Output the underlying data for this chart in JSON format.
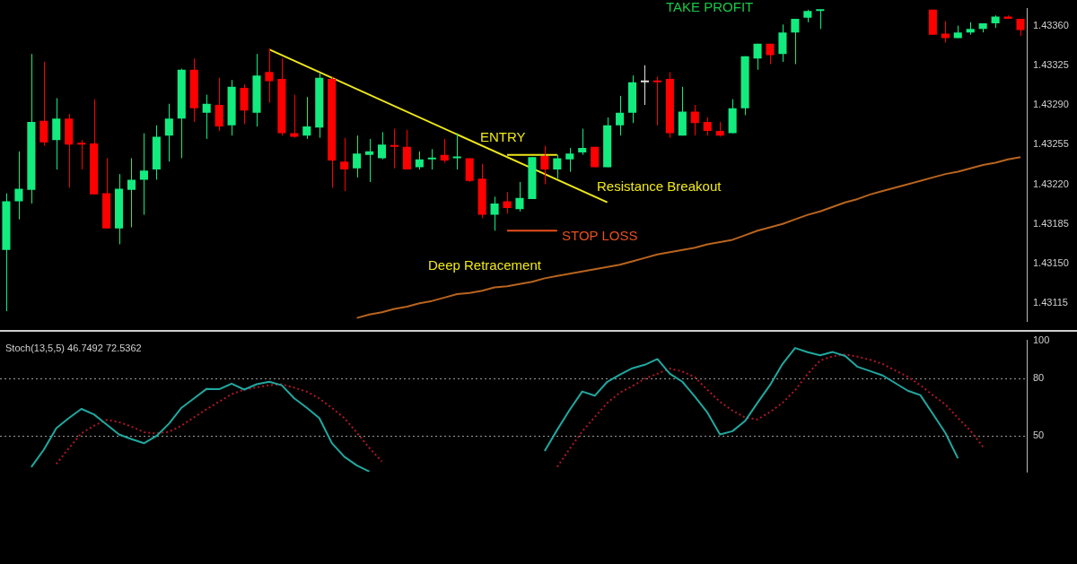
{
  "chart_data": [
    {
      "type": "candlestick",
      "categories": [
        null,
        null,
        null,
        null,
        null,
        null,
        null,
        null,
        null,
        null,
        null,
        null,
        null,
        null,
        null,
        null,
        null,
        null,
        null,
        null,
        null,
        null,
        null,
        null,
        null,
        null,
        null,
        null,
        null,
        null,
        null,
        null,
        null,
        null,
        null,
        null,
        null,
        null,
        null,
        null,
        null,
        null,
        null,
        null,
        null,
        null,
        null,
        null,
        null,
        null,
        null,
        null,
        null,
        null,
        null,
        null,
        null,
        null,
        null,
        null,
        null,
        null,
        null,
        null,
        null,
        null,
        null,
        null,
        null,
        null,
        null,
        null,
        null,
        null,
        null,
        null,
        null,
        null,
        null,
        null,
        null,
        null
      ],
      "ohlc": [
        [
          1.43162,
          1.43212,
          1.43108,
          1.43205
        ],
        [
          1.43205,
          1.43249,
          1.43189,
          1.43216
        ],
        [
          1.43215,
          1.43335,
          1.43203,
          1.43275
        ],
        [
          1.43276,
          1.43328,
          1.43254,
          1.43257
        ],
        [
          1.43259,
          1.43296,
          1.43233,
          1.43278
        ],
        [
          1.43278,
          1.43282,
          1.43217,
          1.43255
        ],
        [
          1.43256,
          1.43259,
          1.43233,
          1.43255
        ],
        [
          1.43256,
          1.43295,
          1.43211,
          1.43211
        ],
        [
          1.43212,
          1.43243,
          1.43181,
          1.43181
        ],
        [
          1.43181,
          1.43229,
          1.43167,
          1.43216
        ],
        [
          1.43215,
          1.43243,
          1.43182,
          1.43224
        ],
        [
          1.43224,
          1.43265,
          1.43193,
          1.43232
        ],
        [
          1.43233,
          1.43272,
          1.43224,
          1.43262
        ],
        [
          1.43263,
          1.43291,
          1.4324,
          1.43278
        ],
        [
          1.43278,
          1.43322,
          1.43243,
          1.43321
        ],
        [
          1.43321,
          1.43331,
          1.43275,
          1.43287
        ],
        [
          1.43283,
          1.43299,
          1.4326,
          1.43291
        ],
        [
          1.4329,
          1.43314,
          1.43267,
          1.43271
        ],
        [
          1.43272,
          1.43312,
          1.43263,
          1.43306
        ],
        [
          1.43305,
          1.43308,
          1.43273,
          1.43285
        ],
        [
          1.43283,
          1.43335,
          1.43271,
          1.43316
        ],
        [
          1.43319,
          1.4334,
          1.43292,
          1.43311
        ],
        [
          1.43313,
          1.43331,
          1.43263,
          1.43265
        ],
        [
          1.43265,
          1.43299,
          1.43261,
          1.43262
        ],
        [
          1.43263,
          1.43297,
          1.4326,
          1.43271
        ],
        [
          1.4327,
          1.43318,
          1.43261,
          1.43314
        ],
        [
          1.43313,
          1.43315,
          1.43217,
          1.43241
        ],
        [
          1.4324,
          1.43261,
          1.43214,
          1.43233
        ],
        [
          1.43234,
          1.43263,
          1.43226,
          1.43247
        ],
        [
          1.43246,
          1.4326,
          1.43222,
          1.43249
        ],
        [
          1.43243,
          1.43266,
          1.43242,
          1.43255
        ],
        [
          1.43254,
          1.43269,
          1.43234,
          1.43253
        ],
        [
          1.43253,
          1.43268,
          1.43233,
          1.43233
        ],
        [
          1.43235,
          1.43249,
          1.43233,
          1.43242
        ],
        [
          1.43242,
          1.43251,
          1.43233,
          1.43243
        ],
        [
          1.43246,
          1.4326,
          1.43239,
          1.43241
        ],
        [
          1.43243,
          1.43265,
          1.43233,
          1.43244
        ],
        [
          1.43243,
          1.43243,
          1.43222,
          1.43223
        ],
        [
          1.43225,
          1.43238,
          1.4319,
          1.43193
        ],
        [
          1.43193,
          1.43209,
          1.43179,
          1.43203
        ],
        [
          1.43205,
          1.43213,
          1.43194,
          1.43199
        ],
        [
          1.43198,
          1.43222,
          1.43196,
          1.43208
        ],
        [
          1.43207,
          1.43244,
          1.43207,
          1.43244
        ],
        [
          1.43245,
          1.43254,
          1.4322,
          1.43233
        ],
        [
          1.43233,
          1.43246,
          1.43225,
          1.43243
        ],
        [
          1.43242,
          1.43252,
          1.43231,
          1.43247
        ],
        [
          1.43248,
          1.43269,
          1.43246,
          1.43252
        ],
        [
          1.43253,
          1.43253,
          1.43235,
          1.43235
        ],
        [
          1.43235,
          1.43279,
          1.43235,
          1.43272
        ],
        [
          1.43272,
          1.43298,
          1.43263,
          1.43283
        ],
        [
          1.43283,
          1.43316,
          1.43274,
          1.4331
        ],
        [
          1.4331,
          1.43325,
          1.4329,
          1.43311
        ],
        [
          1.43311,
          1.43315,
          1.43272,
          1.4331
        ],
        [
          1.43313,
          1.43319,
          1.43261,
          1.43265
        ],
        [
          1.43263,
          1.43306,
          1.43263,
          1.43284
        ],
        [
          1.43284,
          1.4329,
          1.43263,
          1.43274
        ],
        [
          1.43275,
          1.43279,
          1.43263,
          1.43267
        ],
        [
          1.43267,
          1.43275,
          1.43262,
          1.43263
        ],
        [
          1.43265,
          1.43295,
          1.43265,
          1.43287
        ],
        [
          1.43287,
          1.43333,
          1.43281,
          1.43333
        ],
        [
          1.43331,
          1.43344,
          1.43321,
          1.43344
        ],
        [
          1.43344,
          1.43344,
          1.43326,
          1.43334
        ],
        [
          1.43335,
          1.43361,
          1.43328,
          1.43354
        ],
        [
          1.43354,
          1.43366,
          1.43326,
          1.43366
        ],
        [
          1.43367,
          1.43374,
          1.43363,
          1.43373
        ],
        [
          1.43373,
          1.43374,
          1.43357,
          1.43374
        ],
        null,
        null,
        null,
        null,
        null,
        null,
        null,
        null,
        [
          1.43374,
          1.43374,
          1.43352,
          1.43352
        ],
        [
          1.43353,
          1.43364,
          1.43345,
          1.43349
        ],
        [
          1.43349,
          1.4336,
          1.43349,
          1.43354
        ],
        [
          1.43354,
          1.43363,
          1.43352,
          1.43357
        ],
        [
          1.43357,
          1.43362,
          1.43354,
          1.43362
        ],
        [
          1.43362,
          1.43369,
          1.43358,
          1.43368
        ],
        [
          1.43368,
          1.43369,
          1.43366,
          1.43366
        ],
        [
          1.43366,
          1.43366,
          1.43351,
          1.43356
        ]
      ],
      "colors": [
        "#13eb7f",
        "#13eb7f",
        "#13eb7f",
        "#ff0000",
        "#13eb7f",
        "#ff0000",
        "#ff0000",
        "#ff0000",
        "#ff0000",
        "#13eb7f",
        "#13eb7f",
        "#13eb7f",
        "#13eb7f",
        "#13eb7f",
        "#13eb7f",
        "#ff0000",
        "#13eb7f",
        "#ff0000",
        "#13eb7f",
        "#ff0000",
        "#13eb7f",
        "#ff0000",
        "#ff0000",
        "#ff0000",
        "#13eb7f",
        "#13eb7f",
        "#ff0000",
        "#ff0000",
        "#13eb7f",
        "#13eb7f",
        "#13eb7f",
        "#ff0000",
        "#ff0000",
        "#13eb7f",
        "#13eb7f",
        "#ff0000",
        "#13eb7f",
        "#ff0000",
        "#ff0000",
        "#13eb7f",
        "#ff0000",
        "#13eb7f",
        "#13eb7f",
        "#ff0000",
        "#13eb7f",
        "#13eb7f",
        "#13eb7f",
        "#ff0000",
        "#13eb7f",
        "#13eb7f",
        "#13eb7f",
        "#e0e0e0",
        "#ff0000",
        "#ff0000",
        "#13eb7f",
        "#ff0000",
        "#ff0000",
        "#ff0000",
        "#13eb7f",
        "#13eb7f",
        "#13eb7f",
        "#ff0000",
        "#13eb7f",
        "#13eb7f",
        "#13eb7f",
        "#13eb7f",
        null,
        null,
        null,
        null,
        null,
        null,
        null,
        null,
        "#ff0000",
        "#ff0000",
        "#13eb7f",
        "#13eb7f",
        "#13eb7f",
        "#13eb7f",
        "#ff0000",
        "#ff0000"
      ],
      "series": [
        {
          "type": "line",
          "color": "#b8641e",
          "values": [
            null,
            null,
            null,
            null,
            null,
            null,
            null,
            null,
            null,
            null,
            null,
            null,
            null,
            null,
            null,
            null,
            null,
            null,
            null,
            null,
            null,
            null,
            null,
            null,
            null,
            null,
            null,
            null,
            1.43102,
            1.43105,
            1.43107,
            1.4311,
            1.43112,
            1.43115,
            1.43117,
            1.4312,
            1.43123,
            1.43124,
            1.43126,
            1.43129,
            1.4313,
            1.43132,
            1.43134,
            1.43137,
            1.43139,
            1.43141,
            1.43143,
            1.43145,
            1.43147,
            1.43149,
            1.43152,
            1.43155,
            1.43158,
            1.4316,
            1.43162,
            1.43164,
            1.43167,
            1.43169,
            1.43171,
            1.43175,
            1.43179,
            1.43182,
            1.43185,
            1.43189,
            1.43193,
            1.43196,
            1.432,
            1.43204,
            1.43207,
            1.43211,
            1.43214,
            1.43217,
            1.4322,
            1.43223,
            1.43226,
            1.43229,
            1.43231,
            1.43234,
            1.43237,
            1.43239,
            1.43242,
            1.43244
          ]
        },
        {
          "type": "line",
          "color": "#f0e818",
          "values": [
            null,
            null,
            null,
            null,
            null,
            null,
            null,
            null,
            null,
            null,
            null,
            null,
            null,
            null,
            null,
            null,
            null,
            null,
            null,
            null,
            null,
            1.43339,
            null,
            null,
            null,
            null,
            null,
            null,
            null,
            null,
            null,
            null,
            null,
            null,
            null,
            null,
            null,
            null,
            null,
            null,
            null,
            null,
            null,
            null,
            null,
            null,
            null,
            null,
            1.43204,
            null,
            null,
            null,
            null,
            null,
            null,
            null,
            null,
            null,
            null,
            null,
            null,
            null,
            null,
            null,
            null,
            null,
            null,
            null,
            null,
            null,
            null,
            null,
            null,
            null,
            null,
            null,
            null,
            null,
            null,
            null,
            null,
            null
          ]
        },
        {
          "type": "line",
          "color": "#f0e818",
          "values": [
            null,
            null,
            null,
            null,
            null,
            null,
            null,
            null,
            null,
            null,
            null,
            null,
            null,
            null,
            null,
            null,
            null,
            null,
            null,
            null,
            null,
            null,
            null,
            null,
            null,
            null,
            null,
            null,
            null,
            null,
            null,
            null,
            null,
            null,
            null,
            null,
            null,
            null,
            null,
            null,
            1.43246,
            1.43246,
            1.43246,
            1.43246,
            1.43246,
            null,
            null,
            null,
            null,
            null,
            null,
            null,
            null,
            null,
            null,
            null,
            null,
            null,
            null,
            null,
            null,
            null,
            null,
            null,
            null,
            null,
            null,
            null,
            null,
            null,
            null,
            null,
            null,
            null,
            null,
            null,
            null,
            null,
            null,
            null,
            null,
            null
          ]
        },
        {
          "type": "line",
          "color": "#e8501c",
          "values": [
            null,
            null,
            null,
            null,
            null,
            null,
            null,
            null,
            null,
            null,
            null,
            null,
            null,
            null,
            null,
            null,
            null,
            null,
            null,
            null,
            null,
            null,
            null,
            null,
            null,
            null,
            null,
            null,
            null,
            null,
            null,
            null,
            null,
            null,
            null,
            null,
            null,
            null,
            null,
            null,
            1.43179,
            1.43179,
            1.43179,
            1.43179,
            1.43179,
            null,
            null,
            null,
            null,
            null,
            null,
            null,
            null,
            null,
            null,
            null,
            null,
            null,
            null,
            null,
            null,
            null,
            null,
            null,
            null,
            null,
            null,
            null,
            null,
            null,
            null,
            null,
            null,
            null,
            null,
            null,
            null,
            null,
            null,
            null,
            null,
            null
          ]
        }
      ],
      "ylim": [
        1.43099,
        1.43375
      ],
      "yticks": [
        1.43115,
        {
          "value": 1.4315,
          "label": "1.43150"
        },
        1.43185,
        {
          "value": 1.4322,
          "label": "1.43220"
        },
        1.43255,
        {
          "value": 1.4329,
          "label": "1.43290"
        },
        1.43325,
        {
          "value": 1.4336,
          "label": "1.43360"
        }
      ],
      "annotations": [
        "TAKE PROFIT",
        "ENTRY",
        "Resistance Breakout",
        "STOP LOSS",
        "Deep Retracement"
      ],
      "tick_labels": "y",
      "grid": false,
      "legend": false,
      "marker": "none"
    },
    {
      "type": "line",
      "title": "Stoch(13,5,5) 46.7492 72.5362",
      "categories": [
        null,
        null,
        null,
        null,
        null,
        null,
        null,
        null,
        null,
        null,
        null,
        null,
        null,
        null,
        null,
        null,
        null,
        null,
        null,
        null,
        null,
        null,
        null,
        null,
        null,
        null,
        null,
        null,
        null,
        null,
        null,
        null,
        null,
        null,
        null,
        null,
        null,
        null,
        null,
        null,
        null,
        null,
        null,
        null,
        null,
        null,
        null,
        null,
        null,
        null,
        null,
        null,
        null,
        null,
        null,
        null,
        null,
        null,
        null,
        null,
        null,
        null,
        null,
        null,
        null,
        null,
        null,
        null,
        null,
        null,
        null,
        null,
        null,
        null,
        null,
        null,
        null,
        null,
        null,
        null,
        null,
        null
      ],
      "series": [
        {
          "color": "#20a8a0",
          "line_style": "solid",
          "values": [
            null,
            null,
            33.6,
            42.7,
            54.0,
            59.3,
            64.1,
            61.2,
            56.0,
            50.7,
            48.2,
            46.1,
            49.9,
            56.4,
            64.7,
            69.6,
            74.6,
            74.4,
            77.3,
            74.2,
            77.0,
            78.3,
            76.5,
            69.6,
            64.7,
            59.3,
            46.2,
            39.0,
            34.4,
            31.2,
            null,
            null,
            null,
            null,
            null,
            null,
            null,
            null,
            null,
            null,
            null,
            null,
            null,
            42.0,
            53.1,
            63.6,
            73.2,
            71.0,
            78.3,
            82.0,
            85.4,
            87.2,
            90.2,
            82.5,
            78.3,
            70.5,
            62.1,
            50.7,
            52.4,
            57.7,
            67.3,
            76.6,
            87.7,
            96.0,
            93.8,
            92.2,
            93.9,
            91.8,
            86.1,
            83.9,
            81.6,
            77.6,
            73.6,
            71.3,
            61.5,
            51.5,
            38.2,
            null,
            null,
            null,
            null,
            null
          ]
        },
        {
          "color": "#b01828",
          "line_style": "dotted",
          "values": [
            null,
            null,
            null,
            null,
            35.2,
            43.5,
            51.3,
            55.2,
            58.3,
            57.2,
            54.8,
            51.9,
            51.2,
            52.1,
            55.3,
            59.7,
            63.9,
            67.9,
            71.8,
            74.2,
            75.4,
            76.5,
            77.0,
            75.2,
            73.1,
            69.6,
            64.6,
            59.3,
            51.6,
            43.6,
            36.5,
            null,
            null,
            null,
            null,
            null,
            null,
            null,
            null,
            null,
            null,
            null,
            null,
            null,
            33.7,
            43.2,
            52.3,
            59.8,
            67.2,
            72.6,
            76.0,
            79.9,
            82.5,
            85.2,
            83.7,
            80.7,
            74.0,
            67.8,
            63.2,
            59.6,
            58.6,
            62.4,
            67.3,
            73.9,
            82.4,
            89.4,
            91.7,
            92.6,
            91.5,
            89.8,
            87.6,
            84.2,
            80.9,
            76.5,
            71.3,
            66.4,
            59.4,
            52.7,
            44.2,
            null,
            null,
            null
          ]
        }
      ],
      "ylim": [
        31,
        100
      ],
      "yticks": [
        100,
        80,
        50
      ],
      "ref_lines": [
        {
          "axis": "y",
          "value": 80,
          "color": "#9a9a9a",
          "line_style": "dotted"
        },
        {
          "axis": "y",
          "value": 50,
          "color": "#9a9a9a",
          "line_style": "dotted"
        }
      ],
      "tick_labels": "y",
      "grid": false,
      "legend": false,
      "marker": "none"
    }
  ]
}
